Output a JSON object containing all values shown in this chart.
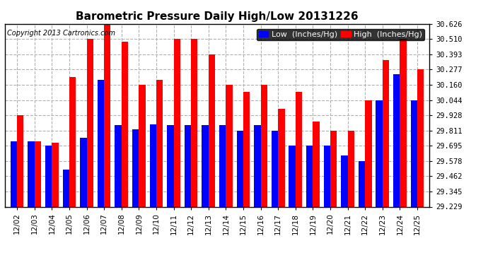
{
  "title": "Barometric Pressure Daily High/Low 20131226",
  "copyright": "Copyright 2013 Cartronics.com",
  "legend_low": "Low  (Inches/Hg)",
  "legend_high": "High  (Inches/Hg)",
  "categories": [
    "12/02",
    "12/03",
    "12/04",
    "12/05",
    "12/06",
    "12/07",
    "12/08",
    "12/09",
    "12/10",
    "12/11",
    "12/12",
    "12/13",
    "12/14",
    "12/15",
    "12/16",
    "12/17",
    "12/18",
    "12/19",
    "12/20",
    "12/21",
    "12/22",
    "12/23",
    "12/24",
    "12/25"
  ],
  "low_values": [
    29.73,
    29.73,
    29.695,
    29.51,
    29.755,
    30.2,
    29.855,
    29.82,
    29.86,
    29.855,
    29.855,
    29.855,
    29.855,
    29.81,
    29.855,
    29.81,
    29.695,
    29.695,
    29.695,
    29.62,
    29.575,
    30.044,
    30.24,
    30.044
  ],
  "high_values": [
    29.928,
    29.73,
    29.72,
    30.22,
    30.51,
    30.626,
    30.49,
    30.16,
    30.2,
    30.51,
    30.51,
    30.393,
    30.16,
    30.105,
    30.16,
    29.975,
    30.105,
    29.88,
    29.81,
    29.81,
    30.044,
    30.35,
    30.51,
    30.277
  ],
  "ylim_min": 29.229,
  "ylim_max": 30.626,
  "yticks": [
    29.229,
    29.345,
    29.462,
    29.578,
    29.695,
    29.811,
    29.928,
    30.044,
    30.16,
    30.277,
    30.393,
    30.51,
    30.626
  ],
  "bar_width": 0.38,
  "low_color": "#0000ff",
  "high_color": "#ff0000",
  "bg_color": "#ffffff",
  "grid_color": "#b0b0b0",
  "title_fontsize": 11,
  "tick_fontsize": 7.5,
  "legend_fontsize": 8,
  "copyright_fontsize": 7
}
